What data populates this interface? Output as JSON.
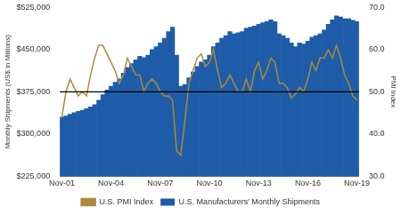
{
  "chart_data": {
    "type": "bar",
    "y_label": "Monthly Shipments (US$ in Millions)",
    "y2_label": "PMI Index",
    "categories": [
      "Nov-01",
      null,
      null,
      null,
      null,
      null,
      null,
      null,
      null,
      null,
      null,
      null,
      "Nov-04",
      null,
      null,
      null,
      null,
      null,
      null,
      null,
      null,
      null,
      null,
      null,
      "Nov-07",
      null,
      null,
      null,
      null,
      null,
      null,
      null,
      null,
      null,
      null,
      null,
      "Nov-10",
      null,
      null,
      null,
      null,
      null,
      null,
      null,
      null,
      null,
      null,
      null,
      "Nov-13",
      null,
      null,
      null,
      null,
      null,
      null,
      null,
      null,
      null,
      null,
      null,
      "Nov-16",
      null,
      null,
      null,
      null,
      null,
      null,
      null,
      null,
      null,
      null,
      null,
      "Nov-19"
    ],
    "series": [
      {
        "name": "U.S. Manufacturers' Monthly Shipments",
        "type": "bar",
        "color": "#1f5ca8",
        "values": [
          330000,
          332000,
          335000,
          338000,
          340000,
          342000,
          345000,
          348000,
          352000,
          360000,
          370000,
          378000,
          385000,
          392000,
          398000,
          408000,
          418000,
          425000,
          432000,
          438000,
          436000,
          440000,
          450000,
          455000,
          462000,
          470000,
          482000,
          490000,
          440000,
          385000,
          388000,
          400000,
          410000,
          420000,
          428000,
          432000,
          440000,
          455000,
          462000,
          470000,
          475000,
          482000,
          478000,
          480000,
          482000,
          488000,
          490000,
          492000,
          495000,
          498000,
          500000,
          503000,
          500000,
          478000,
          475000,
          470000,
          462000,
          455000,
          462000,
          460000,
          465000,
          472000,
          475000,
          478000,
          485000,
          495000,
          503000,
          510000,
          508000,
          505000,
          505000,
          502000,
          500000
        ]
      },
      {
        "name": "U.S. PMI Index",
        "type": "line",
        "color": "#a88b3c",
        "axis": "y2",
        "values": [
          44,
          50,
          53,
          51,
          49,
          50,
          49,
          54,
          58,
          61,
          61,
          59,
          57,
          55,
          52,
          54,
          58,
          56,
          54,
          54,
          50,
          52,
          53,
          52,
          50,
          49,
          49,
          48,
          36,
          35,
          43,
          52,
          55,
          58,
          59,
          56,
          57,
          60,
          55,
          51,
          52,
          54,
          52,
          50,
          50,
          53,
          50,
          55,
          57,
          53,
          55,
          58,
          57,
          52,
          52,
          51,
          48.5,
          49.5,
          51,
          50,
          53,
          57,
          55,
          58,
          58,
          60,
          58,
          61,
          58,
          54,
          52,
          49,
          48
        ]
      }
    ],
    "ylim": [
      225000,
      525000
    ],
    "yticks": [
      {
        "value": 225000,
        "label": "$225,000"
      },
      {
        "value": 300000,
        "label": "$300,000"
      },
      {
        "value": 375000,
        "label": "$375,000"
      },
      {
        "value": 450000,
        "label": "$450,000"
      },
      {
        "value": 525000,
        "label": "$525,000"
      }
    ],
    "y2lim": [
      30,
      70
    ],
    "y2ticks": [
      {
        "value": 30,
        "label": "30.0"
      },
      {
        "value": 40,
        "label": "40.0"
      },
      {
        "value": 50,
        "label": "50.0"
      },
      {
        "value": 60,
        "label": "60.0"
      },
      {
        "value": 70,
        "label": "70.0"
      }
    ],
    "reference_line": {
      "value": 50,
      "axis": "y2"
    },
    "grid": false,
    "legend": "bottom"
  }
}
